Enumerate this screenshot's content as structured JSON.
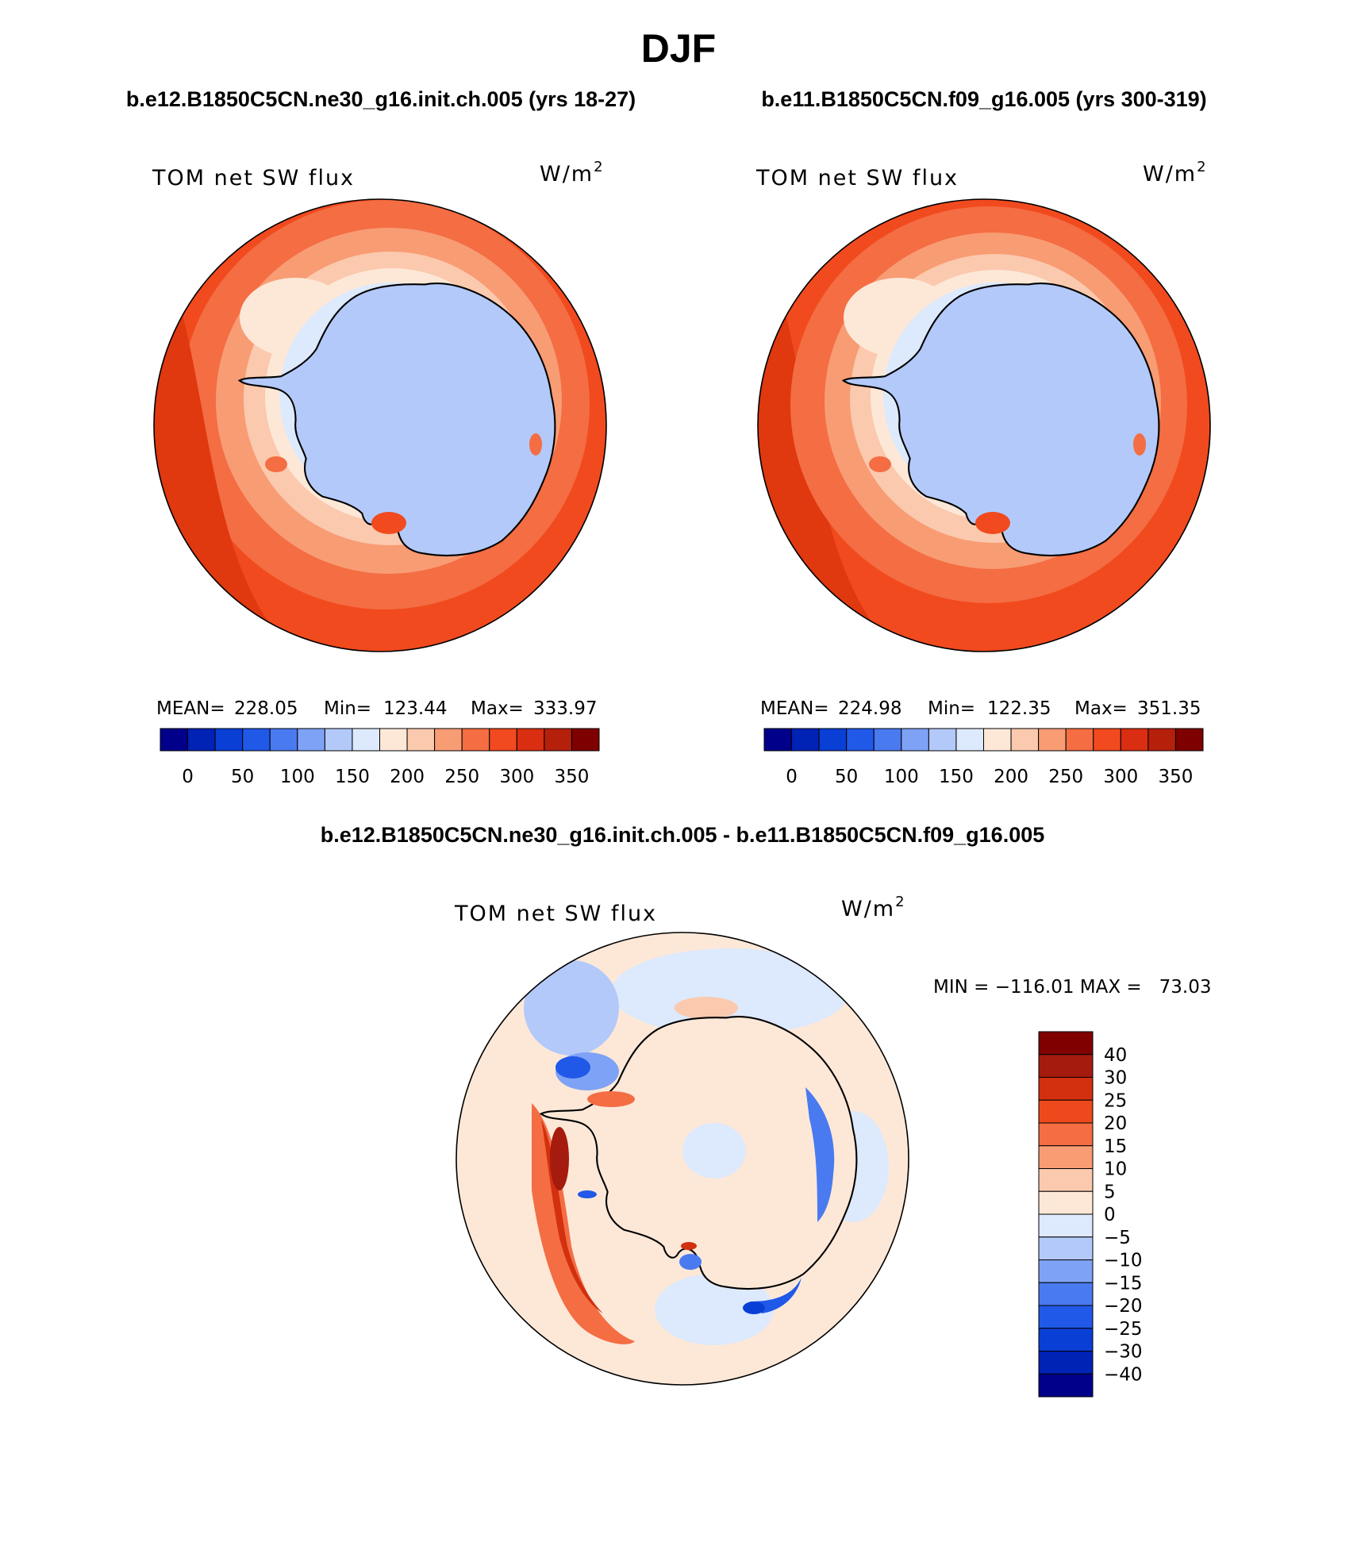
{
  "figure": {
    "season": "DJF",
    "caption_left": "b.e12.B1850C5CN.ne30_g16.init.ch.005 (yrs 18-27)",
    "caption_right": "b.e11.B1850C5CN.f09_g16.005 (yrs 300-319)",
    "caption_diff": "b.e12.B1850C5CN.ne30_g16.init.ch.005 - b.e11.B1850C5CN.f09_g16.005"
  },
  "panels": [
    {
      "id": "case",
      "variable": "TOM net SW flux",
      "units_base": "W/m",
      "units_exp": "2",
      "stats": {
        "mean_label": "MEAN=",
        "mean": "228.05",
        "min_label": "Min=",
        "min": "123.44",
        "max_label": "Max=",
        "max": "333.97"
      }
    },
    {
      "id": "control",
      "variable": "TOM net SW flux",
      "units_base": "W/m",
      "units_exp": "2",
      "stats": {
        "mean_label": "MEAN=",
        "mean": "224.98",
        "min_label": "Min=",
        "min": "122.35",
        "max_label": "Max=",
        "max": "351.35"
      }
    },
    {
      "id": "difference",
      "variable": "TOM net SW flux",
      "units_base": "W/m",
      "units_exp": "2",
      "stats_line": "MIN = −116.01 MAX =   73.03"
    }
  ],
  "colorbar_main": {
    "colors": [
      "#00008a",
      "#0022b5",
      "#0a3fd6",
      "#2058e8",
      "#4a7af0",
      "#7ea2f5",
      "#b3c9f9",
      "#dde9fc",
      "#fde8d8",
      "#fbc9ad",
      "#f89c74",
      "#f46d43",
      "#f14a1e",
      "#d92e12",
      "#b5200b",
      "#7f0000"
    ],
    "labels": [
      "0",
      "50",
      "100",
      "150",
      "200",
      "250",
      "300",
      "350"
    ]
  },
  "colorbar_diff": {
    "colors_top_to_bottom": [
      "#800000",
      "#a51b0e",
      "#d2300f",
      "#ec4a1c",
      "#f46d43",
      "#f89c74",
      "#fbc9ad",
      "#fde8d8",
      "#dde9fc",
      "#b3c9f9",
      "#7ea2f5",
      "#4a7af0",
      "#2058e8",
      "#0a3fd6",
      "#0022b5",
      "#00008a"
    ],
    "labels": [
      "40",
      "30",
      "25",
      "20",
      "15",
      "10",
      "5",
      "0",
      "−5",
      "−10",
      "−15",
      "−20",
      "−25",
      "−30",
      "−40"
    ]
  }
}
